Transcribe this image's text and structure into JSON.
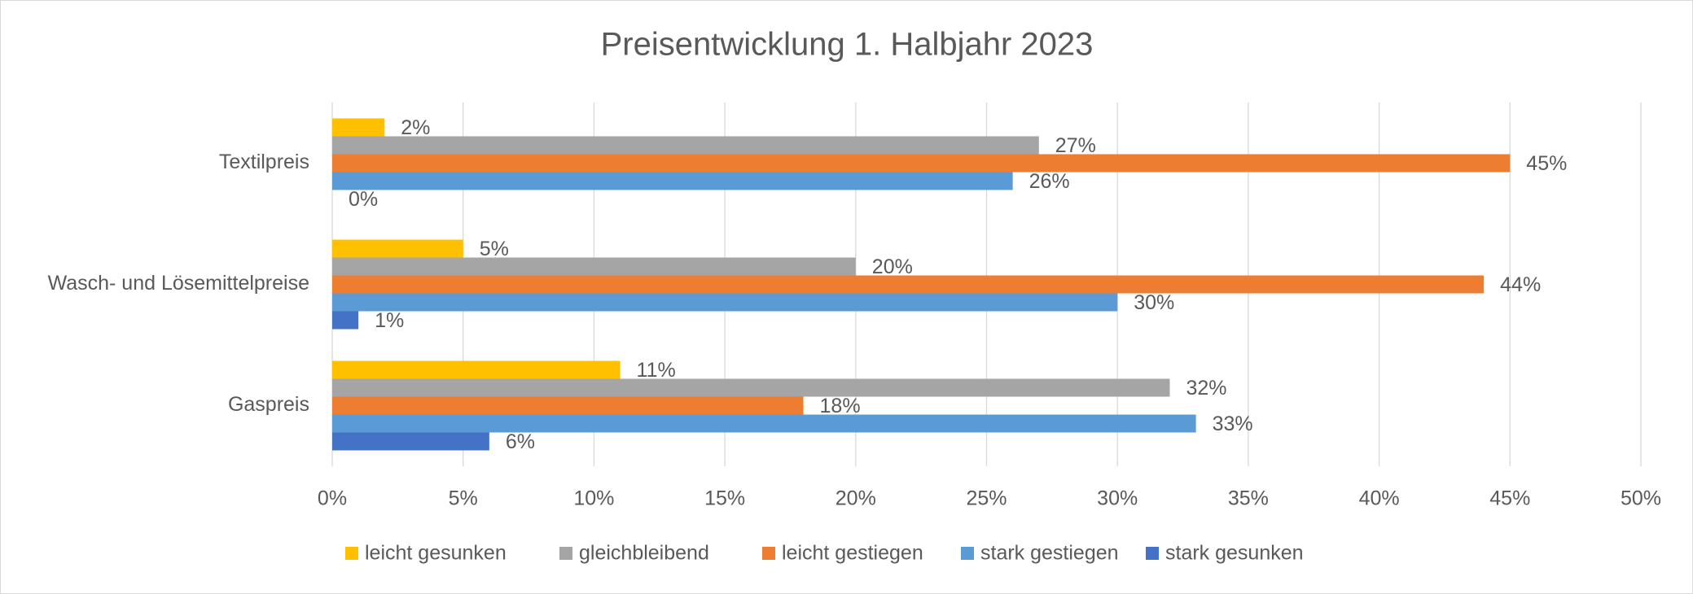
{
  "chart_data": {
    "type": "hbar",
    "title": "Preisentwicklung 1. Halbjahr 2023",
    "categories": [
      "Textilpreis",
      "Wasch- und Lösemittelpreise",
      "Gaspreis"
    ],
    "series": [
      {
        "name": "leicht gesunken",
        "color": "#ffc000",
        "values": [
          2,
          5,
          11
        ],
        "value_labels": [
          "2%",
          "5%",
          "11%"
        ]
      },
      {
        "name": "gleichbleibend",
        "color": "#a5a5a5",
        "values": [
          27,
          20,
          32
        ],
        "value_labels": [
          "27%",
          "20%",
          "32%"
        ]
      },
      {
        "name": "leicht gestiegen",
        "color": "#ed7d31",
        "values": [
          45,
          44,
          18
        ],
        "value_labels": [
          "45%",
          "44%",
          "18%"
        ]
      },
      {
        "name": "stark gestiegen",
        "color": "#5b9bd5",
        "values": [
          26,
          30,
          33
        ],
        "value_labels": [
          "26%",
          "30%",
          "33%"
        ]
      },
      {
        "name": "stark gesunken",
        "color": "#4472c4",
        "values": [
          0,
          1,
          6
        ],
        "value_labels": [
          "0%",
          "1%",
          "6%"
        ]
      }
    ],
    "xlim": [
      0,
      50
    ],
    "xticks": [
      {
        "value": 0,
        "label": "0%"
      },
      {
        "value": 5,
        "label": "5%"
      },
      {
        "value": 10,
        "label": "10%"
      },
      {
        "value": 15,
        "label": "15%"
      },
      {
        "value": 20,
        "label": "20%"
      },
      {
        "value": 25,
        "label": "25%"
      },
      {
        "value": 30,
        "label": "30%"
      },
      {
        "value": 35,
        "label": "35%"
      },
      {
        "value": 40,
        "label": "40%"
      },
      {
        "value": 45,
        "label": "45%"
      },
      {
        "value": 50,
        "label": "50%"
      }
    ],
    "grid": true,
    "legend": "bottom"
  }
}
